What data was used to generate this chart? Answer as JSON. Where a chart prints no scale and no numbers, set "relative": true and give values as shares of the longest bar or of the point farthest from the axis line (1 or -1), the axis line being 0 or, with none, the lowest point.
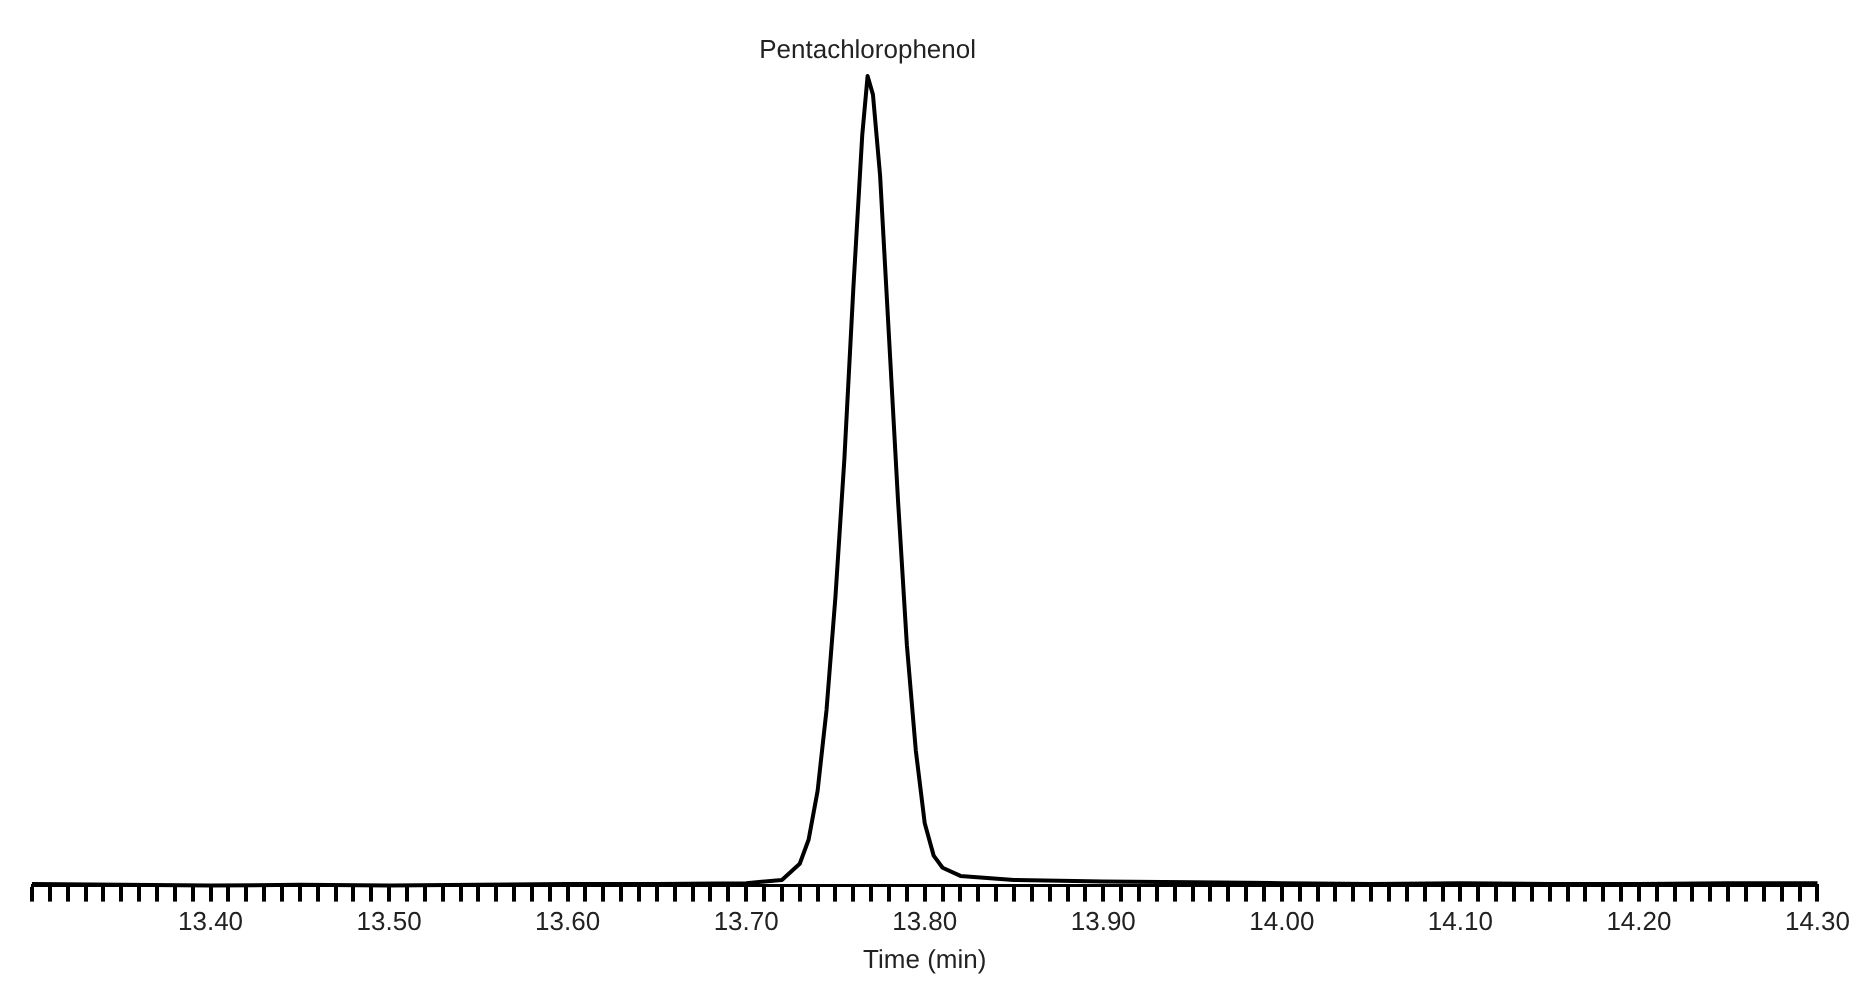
{
  "chart_data": {
    "type": "line",
    "relative": true,
    "xlabel": "Time (min)",
    "xlim": [
      13.3,
      14.3
    ],
    "xticks": [
      {
        "value": 13.3,
        "label": null
      },
      {
        "value": 13.31,
        "label": null
      },
      {
        "value": 13.32,
        "label": null
      },
      {
        "value": 13.33,
        "label": null
      },
      {
        "value": 13.34,
        "label": null
      },
      {
        "value": 13.35,
        "label": null
      },
      {
        "value": 13.36,
        "label": null
      },
      {
        "value": 13.37,
        "label": null
      },
      {
        "value": 13.38,
        "label": null
      },
      {
        "value": 13.39,
        "label": null
      },
      {
        "value": 13.4,
        "label": "13.40"
      },
      {
        "value": 13.41,
        "label": null
      },
      {
        "value": 13.42,
        "label": null
      },
      {
        "value": 13.43,
        "label": null
      },
      {
        "value": 13.44,
        "label": null
      },
      {
        "value": 13.45,
        "label": null
      },
      {
        "value": 13.46,
        "label": null
      },
      {
        "value": 13.47,
        "label": null
      },
      {
        "value": 13.48,
        "label": null
      },
      {
        "value": 13.49,
        "label": null
      },
      {
        "value": 13.5,
        "label": "13.50"
      },
      {
        "value": 13.51,
        "label": null
      },
      {
        "value": 13.52,
        "label": null
      },
      {
        "value": 13.53,
        "label": null
      },
      {
        "value": 13.54,
        "label": null
      },
      {
        "value": 13.55,
        "label": null
      },
      {
        "value": 13.56,
        "label": null
      },
      {
        "value": 13.57,
        "label": null
      },
      {
        "value": 13.58,
        "label": null
      },
      {
        "value": 13.59,
        "label": null
      },
      {
        "value": 13.6,
        "label": "13.60"
      },
      {
        "value": 13.61,
        "label": null
      },
      {
        "value": 13.62,
        "label": null
      },
      {
        "value": 13.63,
        "label": null
      },
      {
        "value": 13.64,
        "label": null
      },
      {
        "value": 13.65,
        "label": null
      },
      {
        "value": 13.66,
        "label": null
      },
      {
        "value": 13.67,
        "label": null
      },
      {
        "value": 13.68,
        "label": null
      },
      {
        "value": 13.69,
        "label": null
      },
      {
        "value": 13.7,
        "label": "13.70"
      },
      {
        "value": 13.71,
        "label": null
      },
      {
        "value": 13.72,
        "label": null
      },
      {
        "value": 13.73,
        "label": null
      },
      {
        "value": 13.74,
        "label": null
      },
      {
        "value": 13.75,
        "label": null
      },
      {
        "value": 13.76,
        "label": null
      },
      {
        "value": 13.77,
        "label": null
      },
      {
        "value": 13.78,
        "label": null
      },
      {
        "value": 13.79,
        "label": null
      },
      {
        "value": 13.8,
        "label": "13.80"
      },
      {
        "value": 13.81,
        "label": null
      },
      {
        "value": 13.82,
        "label": null
      },
      {
        "value": 13.83,
        "label": null
      },
      {
        "value": 13.84,
        "label": null
      },
      {
        "value": 13.85,
        "label": null
      },
      {
        "value": 13.86,
        "label": null
      },
      {
        "value": 13.87,
        "label": null
      },
      {
        "value": 13.88,
        "label": null
      },
      {
        "value": 13.89,
        "label": null
      },
      {
        "value": 13.9,
        "label": "13.90"
      },
      {
        "value": 13.91,
        "label": null
      },
      {
        "value": 13.92,
        "label": null
      },
      {
        "value": 13.93,
        "label": null
      },
      {
        "value": 13.94,
        "label": null
      },
      {
        "value": 13.95,
        "label": null
      },
      {
        "value": 13.96,
        "label": null
      },
      {
        "value": 13.97,
        "label": null
      },
      {
        "value": 13.98,
        "label": null
      },
      {
        "value": 13.99,
        "label": null
      },
      {
        "value": 14.0,
        "label": "14.00"
      },
      {
        "value": 14.01,
        "label": null
      },
      {
        "value": 14.02,
        "label": null
      },
      {
        "value": 14.03,
        "label": null
      },
      {
        "value": 14.04,
        "label": null
      },
      {
        "value": 14.05,
        "label": null
      },
      {
        "value": 14.06,
        "label": null
      },
      {
        "value": 14.07,
        "label": null
      },
      {
        "value": 14.08,
        "label": null
      },
      {
        "value": 14.09,
        "label": null
      },
      {
        "value": 14.1,
        "label": "14.10"
      },
      {
        "value": 14.11,
        "label": null
      },
      {
        "value": 14.12,
        "label": null
      },
      {
        "value": 14.13,
        "label": null
      },
      {
        "value": 14.14,
        "label": null
      },
      {
        "value": 14.15,
        "label": null
      },
      {
        "value": 14.16,
        "label": null
      },
      {
        "value": 14.17,
        "label": null
      },
      {
        "value": 14.18,
        "label": null
      },
      {
        "value": 14.19,
        "label": null
      },
      {
        "value": 14.2,
        "label": "14.20"
      },
      {
        "value": 14.21,
        "label": null
      },
      {
        "value": 14.22,
        "label": null
      },
      {
        "value": 14.23,
        "label": null
      },
      {
        "value": 14.24,
        "label": null
      },
      {
        "value": 14.25,
        "label": null
      },
      {
        "value": 14.26,
        "label": null
      },
      {
        "value": 14.27,
        "label": null
      },
      {
        "value": 14.28,
        "label": null
      },
      {
        "value": 14.29,
        "label": null
      },
      {
        "value": 14.3,
        "label": "14.30"
      }
    ],
    "grid": false,
    "legend": false,
    "marker": "none",
    "line_style": "solid",
    "x": [
      13.3,
      13.35,
      13.4,
      13.45,
      13.5,
      13.55,
      13.6,
      13.65,
      13.7,
      13.72,
      13.73,
      13.735,
      13.74,
      13.745,
      13.75,
      13.755,
      13.76,
      13.765,
      13.768,
      13.771,
      13.775,
      13.78,
      13.785,
      13.79,
      13.795,
      13.8,
      13.805,
      13.81,
      13.82,
      13.85,
      13.9,
      13.95,
      14.0,
      14.05,
      14.1,
      14.15,
      14.2,
      14.25,
      14.3
    ],
    "series": [
      {
        "color": "#000000",
        "values": [
          0.002,
          0.001,
          0,
          0.001,
          0,
          0.001,
          0.002,
          0.002,
          0.003,
          0.007,
          0.027,
          0.057,
          0.117,
          0.217,
          0.357,
          0.527,
          0.737,
          0.927,
          1,
          0.977,
          0.877,
          0.677,
          0.477,
          0.297,
          0.167,
          0.077,
          0.037,
          0.022,
          0.012,
          0.007,
          0.005,
          0.004,
          0.003,
          0.002,
          0.003,
          0.002,
          0.002,
          0.003,
          0.003
        ]
      }
    ],
    "annotations": [
      {
        "text": "Pentachlorophenol",
        "x": 13.768,
        "y": 1
      }
    ]
  }
}
